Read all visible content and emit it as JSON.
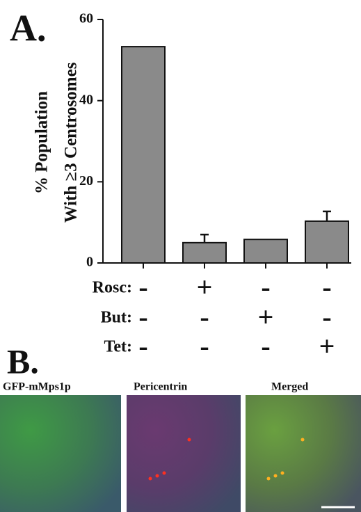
{
  "panel_labels": [
    "A.",
    "B."
  ],
  "chart_data": {
    "type": "bar",
    "ylabel": [
      "% Population",
      "With ≥3 Centrosomes"
    ],
    "values": [
      53.3,
      5.0,
      5.8,
      10.3
    ],
    "errors": [
      null,
      2.0,
      null,
      2.4
    ],
    "color": "#8a8a8a",
    "ylim": [
      0,
      60
    ],
    "yticks": [
      0,
      20,
      40,
      60
    ],
    "treatments": [
      {
        "label": "Rosc:",
        "marks": [
          "-",
          "+",
          "-",
          "-"
        ]
      },
      {
        "label": "But:",
        "marks": [
          "-",
          "-",
          "+",
          "-"
        ]
      },
      {
        "label": "Tet:",
        "marks": [
          "-",
          "-",
          "-",
          "+"
        ]
      }
    ]
  },
  "image_panels": [
    "GFP-mMps1p",
    "Pericentrin",
    "Merged"
  ]
}
